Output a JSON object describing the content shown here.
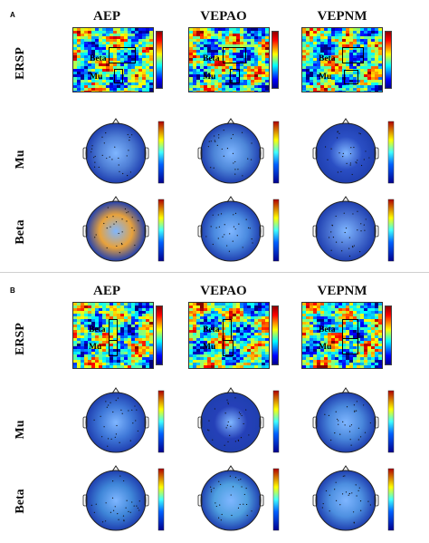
{
  "panels": [
    {
      "letter": "A",
      "columns": [
        "AEP",
        "VEPAO",
        "VEPNM"
      ],
      "rows": [
        "ERSP",
        "Mu",
        "Beta"
      ],
      "ersp_labels": {
        "beta": "Beta",
        "mu": "Mu"
      },
      "topo_tints": [
        {
          "mu": "#4f7fd6",
          "beta": "#e8a23b"
        },
        {
          "mu": "#4d86d8",
          "beta": "#4b8be0"
        },
        {
          "mu": "#2b4fc4",
          "beta": "#4a73d2"
        }
      ]
    },
    {
      "letter": "B",
      "columns": [
        "AEP",
        "VEPAO",
        "VEPNM"
      ],
      "rows": [
        "ERSP",
        "Mu",
        "Beta"
      ],
      "ersp_labels": {
        "beta": "Beta",
        "mu": "Mu"
      },
      "topo_tints": [
        {
          "mu": "#3f78d8",
          "beta": "#3f86d8"
        },
        {
          "mu": "#2540b8",
          "beta": "#4fa0e0"
        },
        {
          "mu": "#4a88dc",
          "beta": "#4d8fe0"
        }
      ]
    }
  ],
  "colors": {
    "jet_low": "#00008f",
    "jet_mid": "#40c0ff",
    "jet_high": "#8f0000"
  }
}
